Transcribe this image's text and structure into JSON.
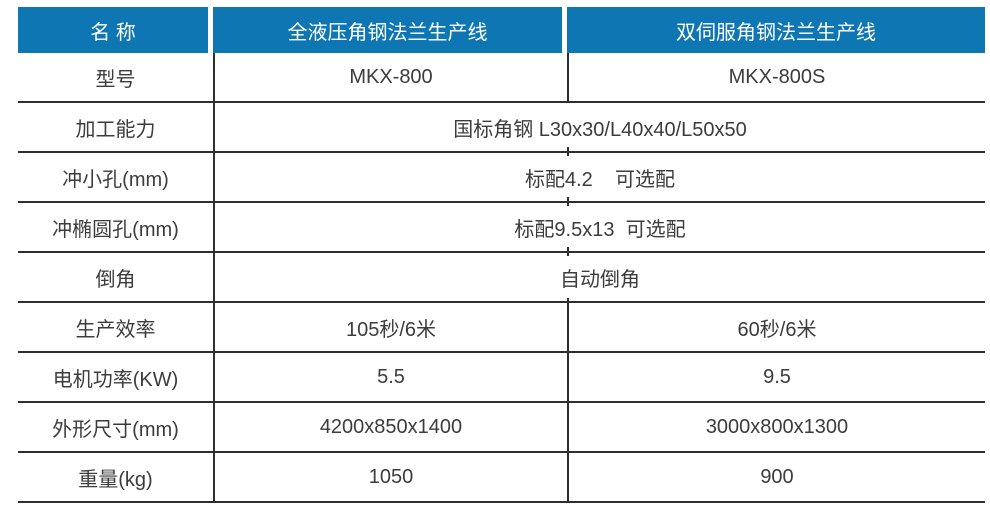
{
  "table": {
    "header": {
      "col1": "名 称",
      "col2": "全液压角钢法兰生产线",
      "col3": "双伺服角钢法兰生产线"
    },
    "rows": [
      {
        "label": "型号",
        "type": "split",
        "col2": "MKX-800",
        "col3": "MKX-800S"
      },
      {
        "label": "加工能力",
        "type": "merged",
        "value": "国标角钢 L30x30/L40x40/L50x50"
      },
      {
        "label": "冲小孔(mm)",
        "type": "merged",
        "value": "标配4.2    可选配"
      },
      {
        "label": "冲椭圆孔(mm)",
        "type": "merged",
        "value": "标配9.5x13  可选配"
      },
      {
        "label": "倒角",
        "type": "merged",
        "value": "自动倒角"
      },
      {
        "label": "生产效率",
        "type": "split",
        "col2": "105秒/6米",
        "col3": "60秒/6米"
      },
      {
        "label": "电机功率(KW)",
        "type": "split",
        "col2": "5.5",
        "col3": "9.5"
      },
      {
        "label": "外形尺寸(mm)",
        "type": "split",
        "col2": "4200x850x1400",
        "col3": "3000x800x1300"
      },
      {
        "label": "重量(kg)",
        "type": "split",
        "col2": "1050",
        "col3": "900"
      }
    ],
    "colors": {
      "header_bg": "#0e76b3",
      "header_text": "#ffffff",
      "body_text": "#3c3c3c",
      "border": "#2e2e2e",
      "background": "#ffffff"
    }
  }
}
